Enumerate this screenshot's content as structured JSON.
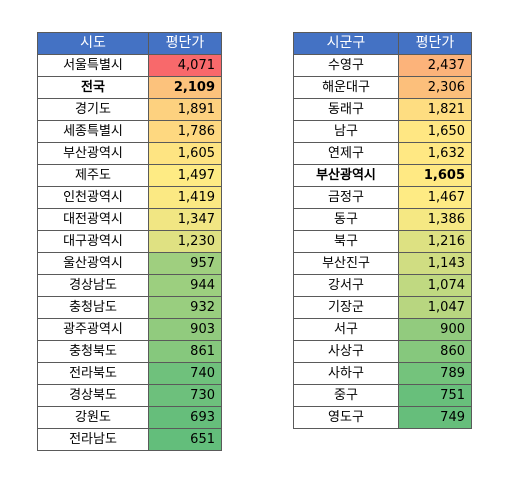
{
  "left_table": {
    "headers": [
      "시도",
      "평단가"
    ],
    "rows": [
      {
        "name": "서울특별시",
        "value": "4,071",
        "color": "#f8696b",
        "bold": false
      },
      {
        "name": "전국",
        "value": "2,109",
        "color": "#fcc27c",
        "bold": true
      },
      {
        "name": "경기도",
        "value": "1,891",
        "color": "#fdd17f",
        "bold": false
      },
      {
        "name": "세종특별시",
        "value": "1,786",
        "color": "#fed880",
        "bold": false
      },
      {
        "name": "부산광역시",
        "value": "1,605",
        "color": "#fee482",
        "bold": false
      },
      {
        "name": "제주도",
        "value": "1,497",
        "color": "#feeb84",
        "bold": false
      },
      {
        "name": "인천광역시",
        "value": "1,419",
        "color": "#fbe983",
        "bold": false
      },
      {
        "name": "대전광역시",
        "value": "1,347",
        "color": "#f1e683",
        "bold": false
      },
      {
        "name": "대구광역시",
        "value": "1,230",
        "color": "#dfe182",
        "bold": false
      },
      {
        "name": "울산광역시",
        "value": "957",
        "color": "#9fcf7f",
        "bold": false
      },
      {
        "name": "경상남도",
        "value": "944",
        "color": "#9ccf7f",
        "bold": false
      },
      {
        "name": "충청남도",
        "value": "932",
        "color": "#99ce7f",
        "bold": false
      },
      {
        "name": "광주광역시",
        "value": "903",
        "color": "#91cb7e",
        "bold": false
      },
      {
        "name": "충청북도",
        "value": "861",
        "color": "#86c87d",
        "bold": false
      },
      {
        "name": "전라북도",
        "value": "740",
        "color": "#6fc17c",
        "bold": false
      },
      {
        "name": "경상북도",
        "value": "730",
        "color": "#6dc07c",
        "bold": false
      },
      {
        "name": "강원도",
        "value": "693",
        "color": "#66be7b",
        "bold": false
      },
      {
        "name": "전라남도",
        "value": "651",
        "color": "#63be7b",
        "bold": false
      }
    ]
  },
  "right_table": {
    "headers": [
      "시군구",
      "평단가"
    ],
    "rows": [
      {
        "name": "수영구",
        "value": "2,437",
        "color": "#fcb37a",
        "bold": false
      },
      {
        "name": "해운대구",
        "value": "2,306",
        "color": "#fcbf7b",
        "bold": false
      },
      {
        "name": "동래구",
        "value": "1,821",
        "color": "#fedd81",
        "bold": false
      },
      {
        "name": "남구",
        "value": "1,650",
        "color": "#ffe783",
        "bold": false
      },
      {
        "name": "연제구",
        "value": "1,632",
        "color": "#ffe883",
        "bold": false
      },
      {
        "name": "부산광역시",
        "value": "1,605",
        "color": "#ffe983",
        "bold": true
      },
      {
        "name": "금정구",
        "value": "1,467",
        "color": "#feeb84",
        "bold": false
      },
      {
        "name": "동구",
        "value": "1,386",
        "color": "#f5e883",
        "bold": false
      },
      {
        "name": "북구",
        "value": "1,216",
        "color": "#dde182",
        "bold": false
      },
      {
        "name": "부산진구",
        "value": "1,143",
        "color": "#d0dd82",
        "bold": false
      },
      {
        "name": "강서구",
        "value": "1,074",
        "color": "#c0d981",
        "bold": false
      },
      {
        "name": "기장군",
        "value": "1,047",
        "color": "#b8d680",
        "bold": false
      },
      {
        "name": "서구",
        "value": "900",
        "color": "#92cb7e",
        "bold": false
      },
      {
        "name": "사상구",
        "value": "860",
        "color": "#86c87d",
        "bold": false
      },
      {
        "name": "사하구",
        "value": "789",
        "color": "#74c37c",
        "bold": false
      },
      {
        "name": "중구",
        "value": "751",
        "color": "#68bf7b",
        "bold": false
      },
      {
        "name": "영도구",
        "value": "749",
        "color": "#66be7b",
        "bold": false
      }
    ]
  }
}
